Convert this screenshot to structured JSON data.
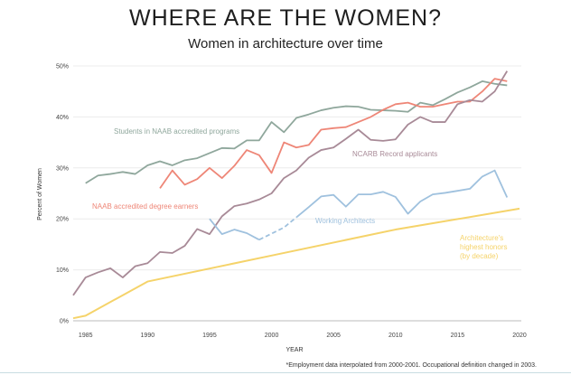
{
  "chart_data": {
    "type": "line",
    "title": "WHERE ARE THE WOMEN?",
    "subtitle": "Women in architecture over time",
    "xlabel": "YEAR",
    "ylabel": "Percent of Women",
    "xlim": [
      1984,
      2020
    ],
    "ylim": [
      0,
      50
    ],
    "x_ticks": [
      "1985",
      "1990",
      "1995",
      "2000",
      "2005",
      "2010",
      "2015",
      "2020"
    ],
    "y_ticks": [
      "0%",
      "10%",
      "20%",
      "30%",
      "40%",
      "50%"
    ],
    "grid": "horizontal",
    "footnote": "*Employment data interpolated from 2000-2001. Occupational definition changed in 2003.",
    "series": [
      {
        "name": "Students in NAAB accredited programs",
        "color": "#8fa79c",
        "x": [
          1985,
          1986,
          1987,
          1988,
          1989,
          1990,
          1991,
          1992,
          1993,
          1994,
          1995,
          1996,
          1997,
          1998,
          1999,
          2000,
          2001,
          2002,
          2003,
          2004,
          2005,
          2006,
          2007,
          2008,
          2009,
          2010,
          2011,
          2012,
          2013,
          2014,
          2015,
          2016,
          2017,
          2018,
          2019
        ],
        "values": [
          27,
          28.5,
          28.8,
          29.2,
          28.8,
          30.5,
          31.3,
          30.5,
          31.5,
          31.9,
          32.9,
          33.9,
          33.8,
          35.4,
          35.4,
          39,
          37,
          39.8,
          40.5,
          41.3,
          41.8,
          42.1,
          42,
          41.4,
          41.3,
          41.2,
          41,
          42.8,
          42.3,
          43.5,
          44.8,
          45.8,
          47,
          46.5,
          46.2
        ]
      },
      {
        "name": "NAAB accredited degree earners",
        "color": "#ee8677",
        "x": [
          1991,
          1992,
          1993,
          1994,
          1995,
          1996,
          1997,
          1998,
          1999,
          2000,
          2001,
          2002,
          2003,
          2004,
          2005,
          2006,
          2007,
          2008,
          2009,
          2010,
          2011,
          2012,
          2013,
          2014,
          2015,
          2016,
          2017,
          2018,
          2019
        ],
        "values": [
          26,
          29.5,
          26.7,
          27.8,
          30,
          28,
          30.4,
          33.5,
          32.5,
          29,
          35,
          34,
          34.5,
          37.5,
          37.8,
          38,
          39,
          40,
          41.4,
          42.5,
          42.8,
          42,
          42,
          42.5,
          43,
          43,
          45,
          47.5,
          47
        ]
      },
      {
        "name": "NCARB Record applicants",
        "color": "#a88a97",
        "x": [
          1984,
          1985,
          1986,
          1987,
          1988,
          1989,
          1990,
          1991,
          1992,
          1993,
          1994,
          1995,
          1996,
          1997,
          1998,
          1999,
          2000,
          2001,
          2002,
          2003,
          2004,
          2005,
          2006,
          2007,
          2008,
          2009,
          2010,
          2011,
          2012,
          2013,
          2014,
          2015,
          2016,
          2017,
          2018,
          2019
        ],
        "values": [
          5,
          8.5,
          9.5,
          10.3,
          8.5,
          10.7,
          11.3,
          13.5,
          13.3,
          14.7,
          18,
          17,
          20.5,
          22.5,
          23,
          23.8,
          25,
          28,
          29.5,
          32,
          33.5,
          34,
          35.7,
          37.5,
          35.5,
          35.3,
          35.6,
          38.5,
          40,
          39,
          39,
          42.5,
          43.3,
          43,
          45,
          49
        ]
      },
      {
        "name": "Working Architects",
        "color": "#9fc1de",
        "x": [
          1995,
          1996,
          1997,
          1998,
          1999,
          2000,
          2001,
          2002,
          2003,
          2004,
          2005,
          2006,
          2007,
          2008,
          2009,
          2010,
          2011,
          2012,
          2013,
          2014,
          2015,
          2016,
          2017,
          2018,
          2019
        ],
        "values": [
          20,
          17,
          17.9,
          17.2,
          15.9,
          17.1,
          18.3,
          20.3,
          22.3,
          24.4,
          24.7,
          22.4,
          24.8,
          24.8,
          25.3,
          24.3,
          21,
          23.4,
          24.8,
          25.1,
          25.5,
          25.9,
          28.3,
          29.5,
          24.2
        ]
      },
      {
        "name": "Architecture's highest honors (by decade)",
        "color": "#f5d36a",
        "x": [
          1984,
          1985,
          1990,
          2000,
          2010,
          2020
        ],
        "values": [
          0.5,
          1,
          7.7,
          12.8,
          17.9,
          22
        ]
      }
    ]
  },
  "labels": {
    "students": "Students in NAAB accredited programs",
    "degree": "NAAB accredited degree earners",
    "ncarb": "NCARB Record applicants",
    "working": "Working Architects",
    "honors_1": "Architecture's",
    "honors_2": "highest honors",
    "honors_3": "(by decade)"
  }
}
